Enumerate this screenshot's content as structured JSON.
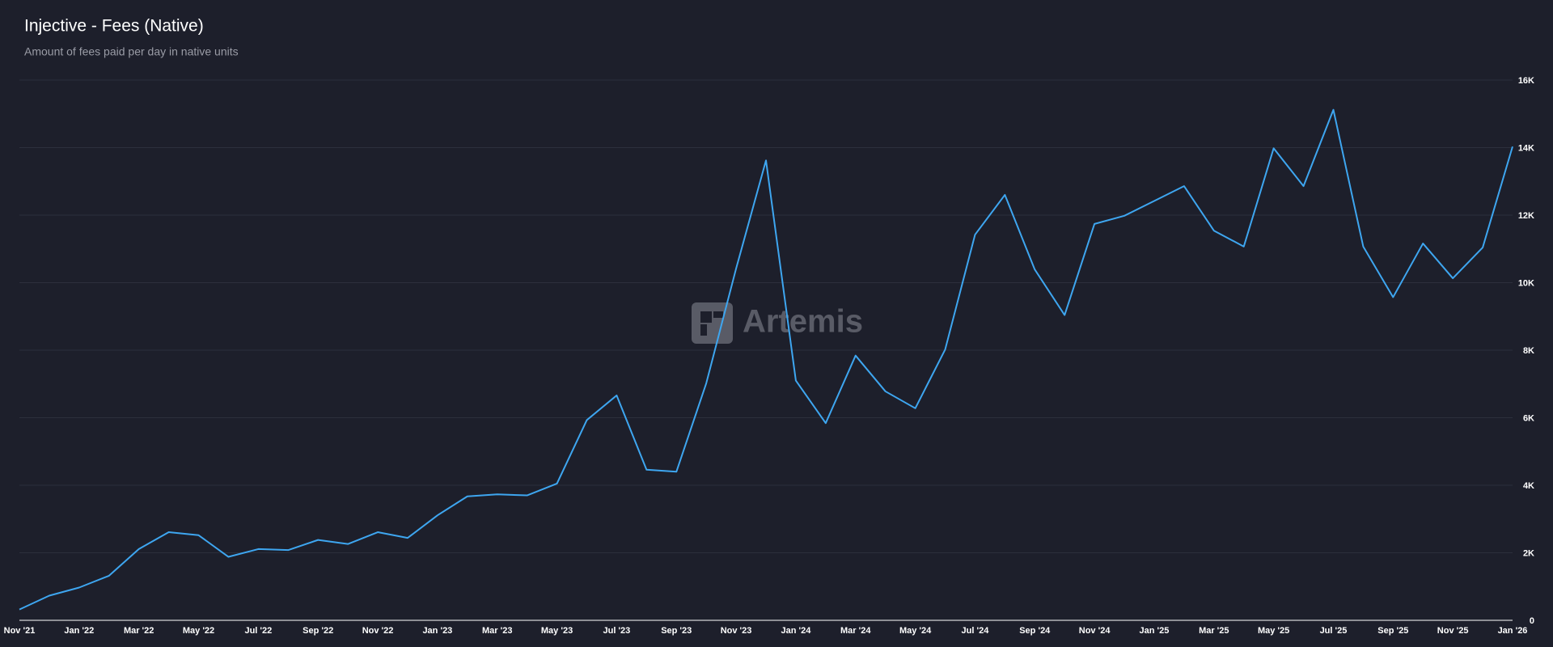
{
  "chart_data": {
    "type": "line",
    "title": "Injective - Fees (Native)",
    "subtitle": "Amount of fees paid per day in native units",
    "watermark": "Artemis",
    "categories": [
      "Nov '21",
      null,
      "Jan '22",
      null,
      "Mar '22",
      null,
      "May '22",
      null,
      "Jul '22",
      null,
      "Sep '22",
      null,
      "Nov '22",
      null,
      "Jan '23",
      null,
      "Mar '23",
      null,
      "May '23",
      null,
      "Jul '23",
      null,
      "Sep '23",
      null,
      "Nov '23",
      null,
      "Jan '24",
      null,
      "Mar '24",
      null,
      "May '24",
      null,
      "Jul '24",
      null,
      "Sep '24",
      null,
      "Nov '24",
      null,
      "Jan '25",
      null,
      "Mar '25",
      null,
      "May '25",
      null,
      "Jul '25",
      null,
      "Sep '25",
      null,
      "Nov '25",
      null,
      "Jan '26"
    ],
    "series": [
      {
        "color": "#3ea6f0",
        "values": [
          320,
          730,
          970,
          1320,
          2110,
          2610,
          2520,
          1880,
          2110,
          2080,
          2380,
          2260,
          2610,
          2440,
          3110,
          3670,
          3730,
          3700,
          4050,
          5930,
          6660,
          4460,
          4400,
          7020,
          10420,
          13620,
          7100,
          5840,
          7840,
          6780,
          6280,
          8020,
          11420,
          12600,
          10390,
          9040,
          11740,
          11980,
          12420,
          12860,
          11540,
          11070,
          13980,
          12860,
          15120,
          11070,
          9570,
          11160,
          10130,
          11040,
          14030
        ]
      }
    ],
    "ylim": [
      0,
      16000
    ],
    "yticks": [
      0,
      {
        "value": 2000,
        "label": "2K"
      },
      {
        "value": 4000,
        "label": "4K"
      },
      {
        "value": 6000,
        "label": "6K"
      },
      {
        "value": 8000,
        "label": "8K"
      },
      {
        "value": 10000,
        "label": "10K"
      },
      {
        "value": 12000,
        "label": "12K"
      },
      {
        "value": 14000,
        "label": "14K"
      },
      {
        "value": 16000,
        "label": "16K"
      }
    ],
    "grid": true
  }
}
